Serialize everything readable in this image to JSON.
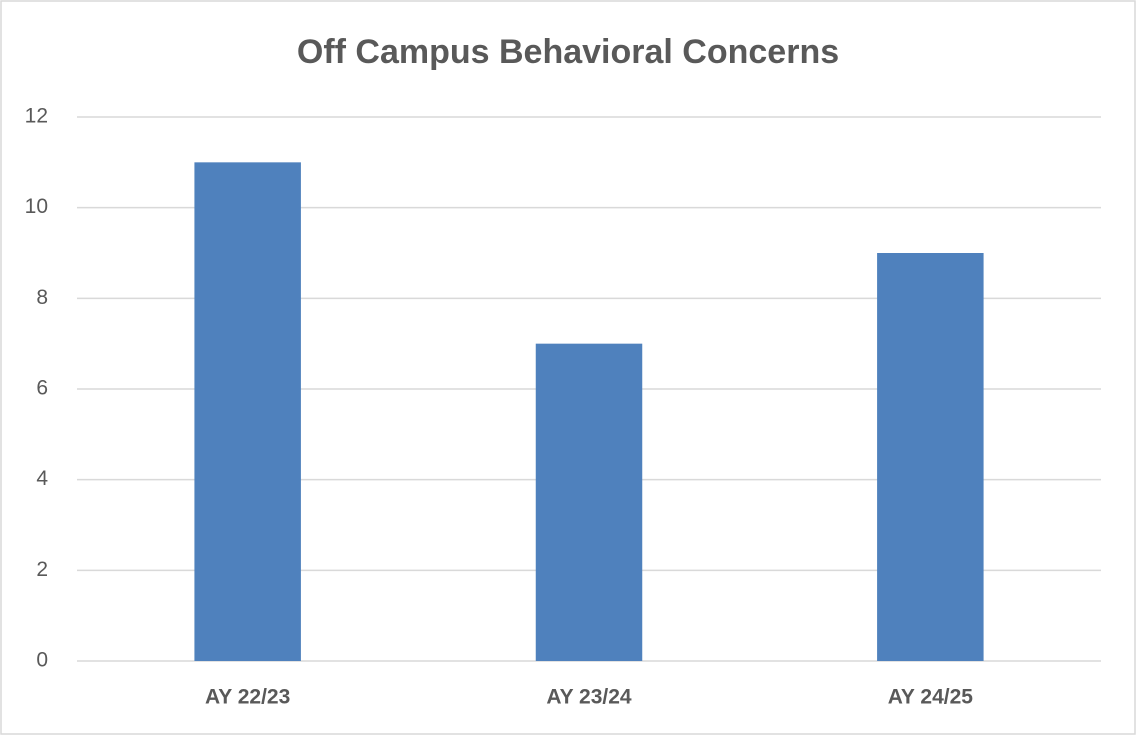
{
  "chart_data": {
    "type": "bar",
    "title": "Off Campus Behavioral Concerns",
    "categories": [
      "AY 22/23",
      "AY 23/24",
      "AY 24/25"
    ],
    "values": [
      11,
      7,
      9
    ],
    "color": "#4f81bd",
    "ylim": [
      0,
      12
    ],
    "yticks": [
      0,
      2,
      4,
      6,
      8,
      10,
      12
    ],
    "grid": true
  }
}
